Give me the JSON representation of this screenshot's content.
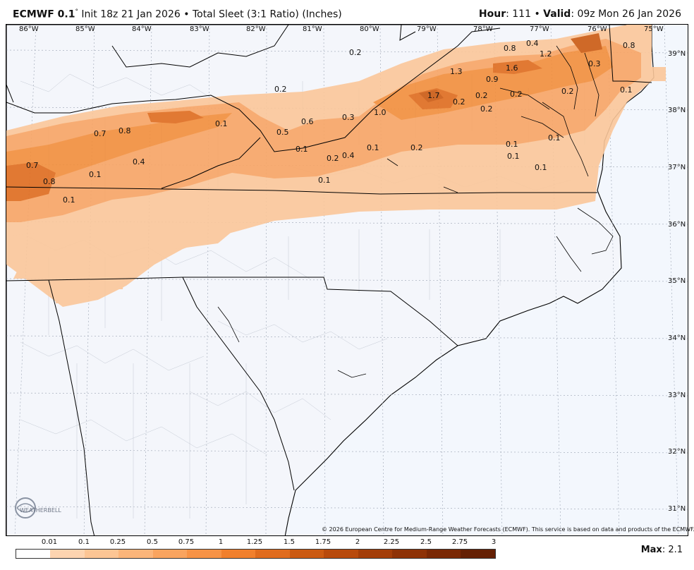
{
  "header": {
    "model": "ECMWF 0.1",
    "degree_symbol": "°",
    "init": "Init 18z 21 Jan 2026",
    "separator": "•",
    "product": "Total Sleet (3:1 Ratio) (Inches)",
    "hour_label": "Hour",
    "hour_value": ": 111",
    "valid_label": "Valid",
    "valid_value": ": 09z Mon 26 Jan 2026"
  },
  "axes": {
    "longitude_labels": [
      "86°W",
      "85°W",
      "84°W",
      "83°W",
      "82°W",
      "81°W",
      "80°W",
      "79°W",
      "78°W",
      "77°W",
      "76°W",
      "75°W"
    ],
    "latitude_labels": [
      "39°N",
      "38°N",
      "37°N",
      "36°N",
      "35°N",
      "34°N",
      "33°N",
      "32°N",
      "31°N"
    ]
  },
  "value_labels": [
    "0.2",
    "0.4",
    "0.8",
    "0.8",
    "1.2",
    "1.3",
    "1.6",
    "0.9",
    "0.3",
    "0.2",
    "1.7",
    "0.2",
    "0.2",
    "0.2",
    "0.1",
    "1.0",
    "0.2",
    "0.3",
    "0.6",
    "0.1",
    "0.7",
    "0.8",
    "0.5",
    "0.2",
    "0.4",
    "0.1",
    "0.2",
    "0.1",
    "0.1",
    "0.2",
    "0.4",
    "0.7",
    "0.1",
    "0.1",
    "0.1",
    "0.8",
    "0.1",
    "0.1",
    "0.1"
  ],
  "copyright": "© 2026 European Centre for Medium-Range Weather Forecasts (ECMWF). This service is based on data and products of the ECMWF.",
  "logo_text": "WEATHERBELL",
  "legend": {
    "ticks": [
      "0.01",
      "0.1",
      "0.25",
      "0.5",
      "0.75",
      "1",
      "1.25",
      "1.5",
      "1.75",
      "2",
      "2.25",
      "2.5",
      "2.75",
      "3"
    ],
    "colors": [
      "#ffffff",
      "#fdd4b0",
      "#fcc594",
      "#fbb57a",
      "#f9a45f",
      "#f79346",
      "#f1802d",
      "#e06c1e",
      "#cb5a12",
      "#b84a0c",
      "#a33d08",
      "#8e3206",
      "#7a2804",
      "#652003"
    ]
  },
  "max": {
    "label": "Max",
    "value": ": 2.1"
  }
}
